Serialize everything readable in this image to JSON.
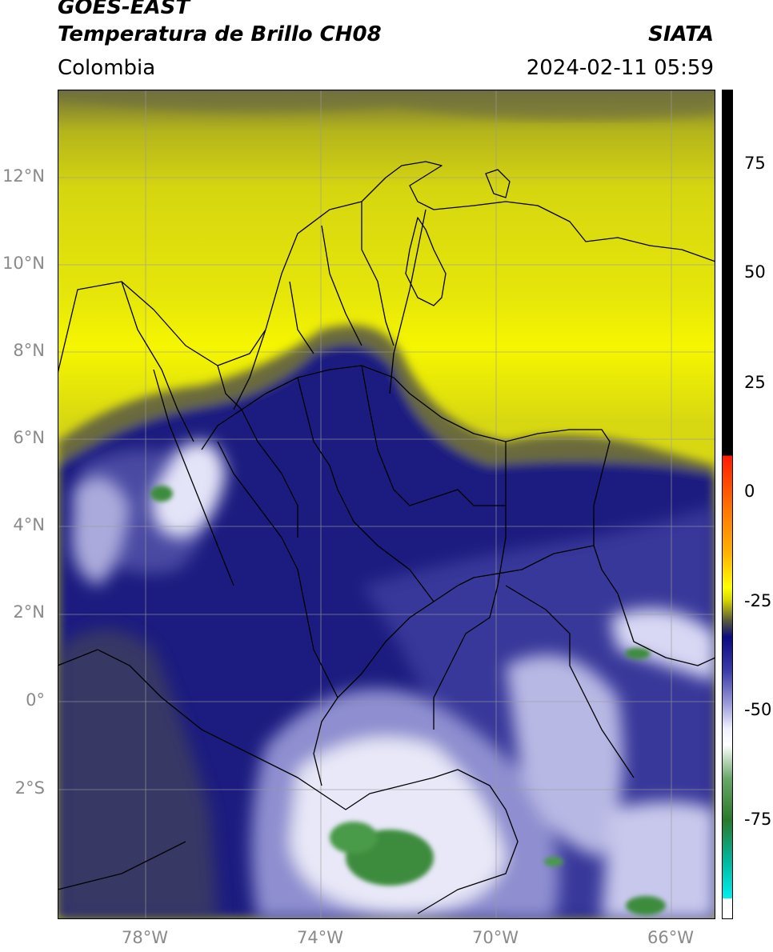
{
  "header": {
    "line1": "GOES-EAST",
    "line2": "Temperatura de Brillo CH08",
    "org": "SIATA",
    "region": "Colombia",
    "datetime": "2024-02-11 05:59"
  },
  "axes": {
    "lat_labels": [
      "12°N",
      "10°N",
      "8°N",
      "6°N",
      "4°N",
      "2°N",
      "0°",
      "2°S"
    ],
    "lon_labels": [
      "78°W",
      "74°W",
      "70°W",
      "66°W"
    ]
  },
  "colorbar": {
    "labels": [
      "75",
      "50",
      "25",
      "0",
      "-25",
      "-50",
      "-75"
    ],
    "colors": {
      "black": "#000000",
      "red": "#ff2a00",
      "orange": "#ff9a00",
      "yellow": "#ffff00",
      "olive": "#5a5a3a",
      "navy": "#0b0b82",
      "lavender": "#9a9ad8",
      "white": "#ffffff",
      "green": "#3a8a3a",
      "cyan": "#00e0e0"
    }
  },
  "map_colors": {
    "yellow_bright": "#f2f200",
    "yellow_olive": "#c8c81a",
    "olive_dark": "#6e6e3c",
    "navy": "#14147e",
    "blue_mid": "#4a4aa8",
    "lavender": "#a8a8dc",
    "cloud_white": "#f0f0ff",
    "green": "#3c8c3c",
    "border_line": "#000000"
  }
}
